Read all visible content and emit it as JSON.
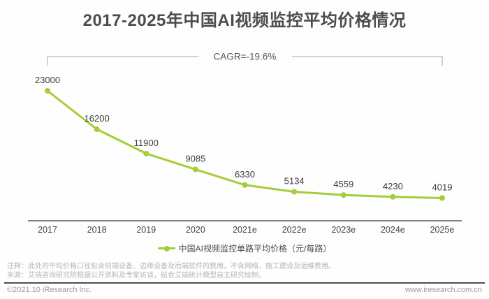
{
  "title": "2017-2025年中国AI视频监控平均价格情况",
  "chart_data": {
    "type": "line",
    "categories": [
      "2017",
      "2018",
      "2019",
      "2020",
      "2021e",
      "2022e",
      "2023e",
      "2024e",
      "2025e"
    ],
    "values": [
      23000,
      16200,
      11900,
      9085,
      6330,
      5134,
      4559,
      4230,
      4019
    ],
    "series_name": "中国AI视频监控单路平均价格（元/每路）",
    "annotation": "CAGR=-19.6%",
    "title": "2017-2025年中国AI视频监控平均价格情况",
    "xlabel": "",
    "ylabel": "",
    "ylim": [
      0,
      23000
    ],
    "grid": false,
    "legend_position": "bottom",
    "line_color": "#a5cd39",
    "label_color": "#3d3d3d"
  },
  "legend": {
    "label": "中国AI视频监控单路平均价格（元/每路）"
  },
  "notes": {
    "note": "注释：此处的平均价格口径包含前端设备、边缘设备及后端软件的费用，不含网络、施工建设及运维费用。",
    "source": "来源：艾瑞咨询研究院根据公开资料及专家访谈，结合艾瑞统计模型自主研究绘制。"
  },
  "footer": {
    "left": "©2021.10 iResearch Inc.",
    "right": "www.iresearch.com.cn"
  }
}
